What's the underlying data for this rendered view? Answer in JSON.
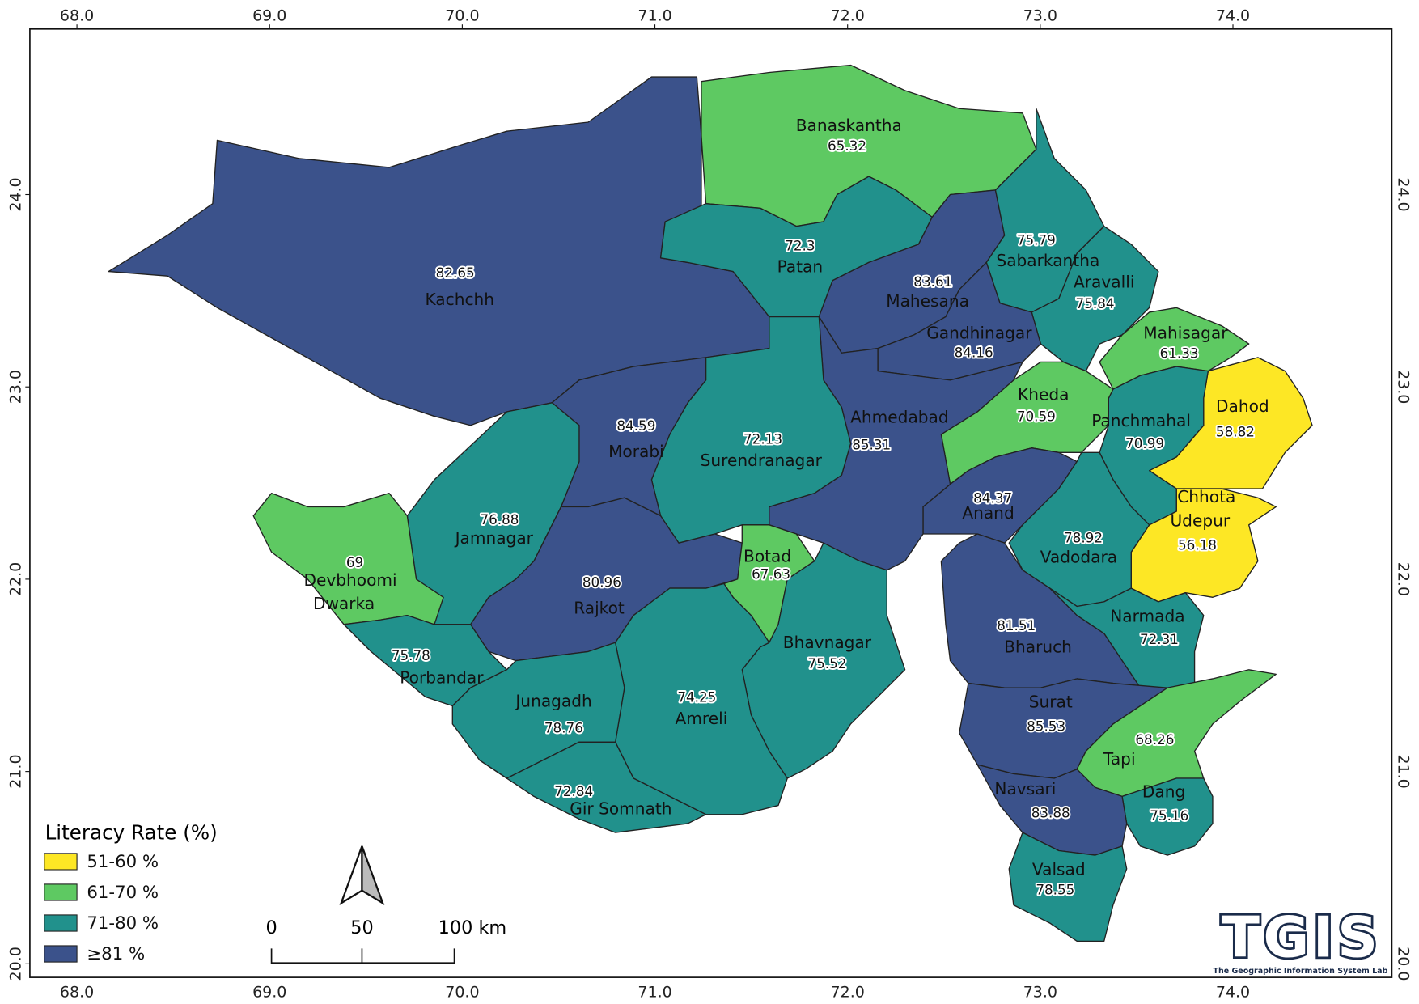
{
  "axes": {
    "x_ticks": [
      {
        "value": 68,
        "label": "68.0"
      },
      {
        "value": 69,
        "label": "69.0"
      },
      {
        "value": 70,
        "label": "70.0"
      },
      {
        "value": 71,
        "label": "71.0"
      },
      {
        "value": 72,
        "label": "72.0"
      },
      {
        "value": 73,
        "label": "73.0"
      },
      {
        "value": 74,
        "label": "74.0"
      }
    ],
    "y_ticks": [
      {
        "value": 24,
        "label": "24.0"
      },
      {
        "value": 23,
        "label": "23.0"
      },
      {
        "value": 22,
        "label": "22.0"
      },
      {
        "value": 21,
        "label": "21.0"
      },
      {
        "value": 20,
        "label": "20.0"
      }
    ]
  },
  "legend": {
    "title": "Literacy Rate (%)",
    "classes": [
      {
        "label": "51-60 %",
        "color": "#fde725"
      },
      {
        "label": "61-70 %",
        "color": "#5ec962"
      },
      {
        "label": "71-80 %",
        "color": "#21918c"
      },
      {
        "label": "≥81 %",
        "color": "#3b528b"
      }
    ]
  },
  "districts": [
    {
      "name": "Kachchh",
      "value": 82.65,
      "color": "#3b528b"
    },
    {
      "name": "Banaskantha",
      "value": 65.32,
      "color": "#5ec962"
    },
    {
      "name": "Patan",
      "value": 72.3,
      "color": "#21918c"
    },
    {
      "name": "Mahesana",
      "value": 83.61,
      "color": "#3b528b"
    },
    {
      "name": "Sabarkantha",
      "value": 75.79,
      "color": "#21918c"
    },
    {
      "name": "Aravalli",
      "value": 75.84,
      "color": "#21918c"
    },
    {
      "name": "Gandhinagar",
      "value": 84.16,
      "color": "#3b528b"
    },
    {
      "name": "Mahisagar",
      "value": 61.33,
      "color": "#5ec962"
    },
    {
      "name": "Dahod",
      "value": 58.82,
      "color": "#fde725"
    },
    {
      "name": "Chhota Udepur",
      "value": 56.18,
      "color": "#fde725"
    },
    {
      "name": "Panchmahal",
      "value": 70.99,
      "color": "#21918c"
    },
    {
      "name": "Kheda",
      "value": 70.59,
      "color": "#5ec962"
    },
    {
      "name": "Anand",
      "value": 84.37,
      "color": "#3b528b"
    },
    {
      "name": "Vadodara",
      "value": 78.92,
      "color": "#21918c"
    },
    {
      "name": "Narmada",
      "value": 72.31,
      "color": "#21918c"
    },
    {
      "name": "Bharuch",
      "value": 81.51,
      "color": "#3b528b"
    },
    {
      "name": "Surat",
      "value": 85.53,
      "color": "#3b528b"
    },
    {
      "name": "Tapi",
      "value": 68.26,
      "color": "#5ec962"
    },
    {
      "name": "Dang",
      "value": 75.16,
      "color": "#21918c"
    },
    {
      "name": "Navsari",
      "value": 83.88,
      "color": "#3b528b"
    },
    {
      "name": "Valsad",
      "value": 78.55,
      "color": "#21918c"
    },
    {
      "name": "Ahmedabad",
      "value": 85.31,
      "color": "#3b528b"
    },
    {
      "name": "Surendranagar",
      "value": 72.13,
      "color": "#21918c"
    },
    {
      "name": "Morabi",
      "value": 84.59,
      "color": "#3b528b"
    },
    {
      "name": "Jamnagar",
      "value": 76.88,
      "color": "#21918c"
    },
    {
      "name": "Devbhoomi Dwarka",
      "value": 69,
      "color": "#5ec962"
    },
    {
      "name": "Rajkot",
      "value": 80.96,
      "color": "#3b528b"
    },
    {
      "name": "Botad",
      "value": 67.63,
      "color": "#5ec962"
    },
    {
      "name": "Bhavnagar",
      "value": 75.52,
      "color": "#21918c"
    },
    {
      "name": "Amreli",
      "value": 74.25,
      "color": "#21918c"
    },
    {
      "name": "Porbandar",
      "value": 75.78,
      "color": "#21918c"
    },
    {
      "name": "Junagadh",
      "value": 78.76,
      "color": "#21918c"
    },
    {
      "name": "Gir Somnath",
      "value": 72.84,
      "color": "#21918c"
    }
  ],
  "scale_bar": {
    "labels": [
      "0",
      "50",
      "100 km"
    ]
  },
  "logo": {
    "text": "TGIS",
    "subtitle": "The Geographic Information System Lab"
  }
}
